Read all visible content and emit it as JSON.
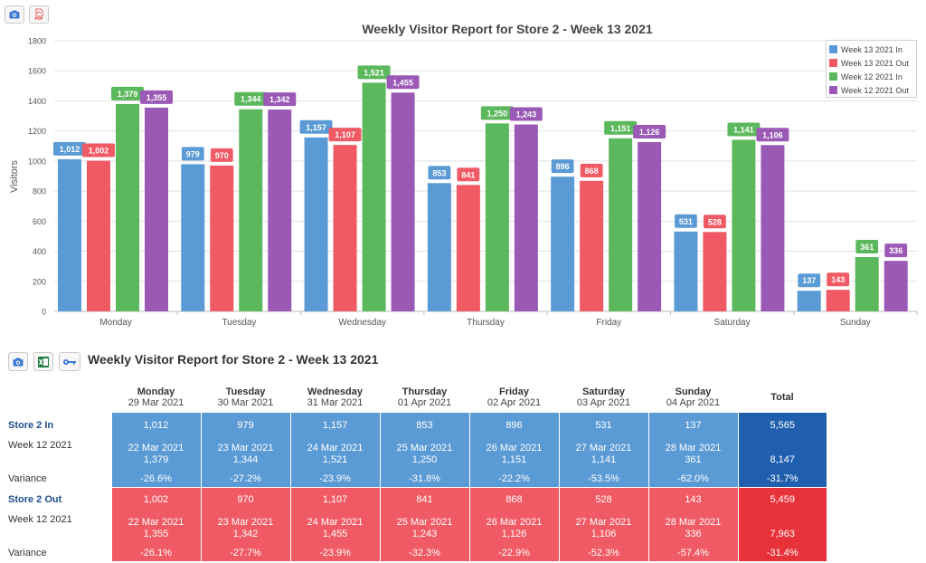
{
  "toolbar_top": {
    "camera_icon": "camera-icon",
    "pdf_icon": "pdf-icon",
    "pdf_label": "PDF"
  },
  "toolbar_table": {
    "camera_icon": "camera-icon",
    "excel_icon": "excel-icon",
    "key_icon": "key-icon"
  },
  "chart_data": {
    "type": "bar",
    "title": "Weekly Visitor Report for Store 2 - Week 13 2021",
    "xlabel": "",
    "ylabel": "Visitors",
    "ylim": [
      0,
      1800
    ],
    "yticks": [
      0,
      200,
      400,
      600,
      800,
      1000,
      1200,
      1400,
      1600,
      1800
    ],
    "grid": true,
    "legend": "top-right",
    "categories": [
      "Monday",
      "Tuesday",
      "Wednesday",
      "Thursday",
      "Friday",
      "Saturday",
      "Sunday"
    ],
    "series": [
      {
        "name": "Week 13 2021 In",
        "color": "#5b9bd5",
        "values": [
          1012,
          979,
          1157,
          853,
          896,
          531,
          137
        ],
        "labels": [
          "1,012",
          "979",
          "1,157",
          "853",
          "896",
          "531",
          "137"
        ]
      },
      {
        "name": "Week 13 2021 Out",
        "color": "#f05a64",
        "values": [
          1002,
          970,
          1107,
          841,
          868,
          528,
          143
        ],
        "labels": [
          "1,002",
          "970",
          "1,107",
          "841",
          "868",
          "528",
          "143"
        ]
      },
      {
        "name": "Week 12 2021 In",
        "color": "#5cb85c",
        "values": [
          1379,
          1344,
          1521,
          1250,
          1151,
          1141,
          361
        ],
        "labels": [
          "1,379",
          "1,344",
          "1,521",
          "1,250",
          "1,151",
          "1,141",
          "361"
        ]
      },
      {
        "name": "Week 12 2021 Out",
        "color": "#9b59b6",
        "values": [
          1355,
          1342,
          1455,
          1243,
          1126,
          1106,
          336
        ],
        "labels": [
          "1,355",
          "1,342",
          "1,455",
          "1,243",
          "1,126",
          "1,106",
          "336"
        ]
      }
    ]
  },
  "table": {
    "title": "Weekly Visitor Report for Store 2 - Week 13 2021",
    "columns": [
      {
        "day": "Monday",
        "date": "29 Mar 2021"
      },
      {
        "day": "Tuesday",
        "date": "30 Mar 2021"
      },
      {
        "day": "Wednesday",
        "date": "31 Mar 2021"
      },
      {
        "day": "Thursday",
        "date": "01 Apr 2021"
      },
      {
        "day": "Friday",
        "date": "02 Apr 2021"
      },
      {
        "day": "Saturday",
        "date": "03 Apr 2021"
      },
      {
        "day": "Sunday",
        "date": "04 Apr 2021"
      },
      {
        "day": "Total",
        "date": ""
      }
    ],
    "groups": [
      {
        "name": "Store 2 In",
        "kind": "in",
        "current": [
          "1,012",
          "979",
          "1,157",
          "853",
          "896",
          "531",
          "137",
          "5,565"
        ],
        "prev_label": "Week 12 2021",
        "prev_dates": [
          "22 Mar 2021",
          "23 Mar 2021",
          "24 Mar 2021",
          "25 Mar 2021",
          "26 Mar 2021",
          "27 Mar 2021",
          "28 Mar 2021",
          ""
        ],
        "prev_values": [
          "1,379",
          "1,344",
          "1,521",
          "1,250",
          "1,151",
          "1,141",
          "361",
          "8,147"
        ],
        "variance_label": "Variance",
        "variance": [
          "-26.6%",
          "-27.2%",
          "-23.9%",
          "-31.8%",
          "-22.2%",
          "-53.5%",
          "-62.0%",
          "-31.7%"
        ]
      },
      {
        "name": "Store 2 Out",
        "kind": "out",
        "current": [
          "1,002",
          "970",
          "1,107",
          "841",
          "868",
          "528",
          "143",
          "5,459"
        ],
        "prev_label": "Week 12 2021",
        "prev_dates": [
          "22 Mar 2021",
          "23 Mar 2021",
          "24 Mar 2021",
          "25 Mar 2021",
          "26 Mar 2021",
          "27 Mar 2021",
          "28 Mar 2021",
          ""
        ],
        "prev_values": [
          "1,355",
          "1,342",
          "1,455",
          "1,243",
          "1,126",
          "1,106",
          "336",
          "7,963"
        ],
        "variance_label": "Variance",
        "variance": [
          "-26.1%",
          "-27.7%",
          "-23.9%",
          "-32.3%",
          "-22.9%",
          "-52.3%",
          "-57.4%",
          "-31.4%"
        ]
      }
    ]
  }
}
